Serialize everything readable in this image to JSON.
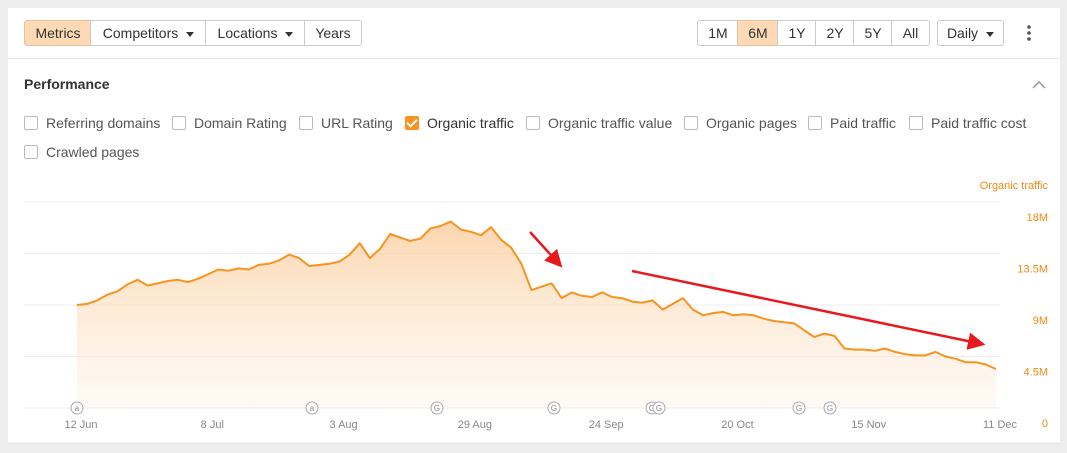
{
  "toolbar": {
    "tabs": [
      "Metrics",
      "Competitors",
      "Locations",
      "Years"
    ],
    "ranges": [
      "1M",
      "6M",
      "1Y",
      "2Y",
      "5Y",
      "All"
    ],
    "interval": "Daily"
  },
  "performance": {
    "title": "Performance",
    "metrics": [
      {
        "label": "Referring domains",
        "checked": false
      },
      {
        "label": "Domain Rating",
        "checked": false
      },
      {
        "label": "URL Rating",
        "checked": false
      },
      {
        "label": "Organic traffic",
        "checked": true
      },
      {
        "label": "Organic traffic value",
        "checked": false
      },
      {
        "label": "Organic pages",
        "checked": false
      },
      {
        "label": "Paid traffic",
        "checked": false
      },
      {
        "label": "Paid traffic cost",
        "checked": false
      },
      {
        "label": "Crawled pages",
        "checked": false
      }
    ]
  },
  "chart_data": {
    "type": "area",
    "categories": [
      "12 Jun",
      null,
      null,
      null,
      null,
      null,
      null,
      null,
      null,
      null,
      null,
      null,
      null,
      "8 Jul",
      null,
      null,
      null,
      null,
      null,
      null,
      null,
      null,
      null,
      null,
      null,
      null,
      "3 Aug",
      null,
      null,
      null,
      null,
      null,
      null,
      null,
      null,
      null,
      null,
      null,
      null,
      "29 Aug",
      null,
      null,
      null,
      null,
      null,
      null,
      null,
      null,
      null,
      null,
      null,
      null,
      "24 Sep",
      null,
      null,
      null,
      null,
      null,
      null,
      null,
      null,
      null,
      null,
      null,
      null,
      "20 Oct",
      null,
      null,
      null,
      null,
      null,
      null,
      null,
      null,
      null,
      null,
      null,
      null,
      "15 Nov",
      null,
      null,
      null,
      null,
      null,
      null,
      null,
      null,
      null,
      null,
      null,
      null,
      "11 Dec"
    ],
    "series": [
      {
        "name": "Organic traffic",
        "color": "#f7931e",
        "values": [
          9000000,
          9100000,
          9400000,
          9900000,
          10200000,
          10800000,
          11200000,
          10700000,
          10900000,
          11100000,
          11200000,
          11000000,
          11300000,
          11700000,
          12100000,
          12000000,
          12200000,
          12100000,
          12500000,
          12600000,
          12900000,
          13400000,
          13100000,
          12400000,
          12500000,
          12600000,
          12800000,
          13400000,
          14400000,
          13100000,
          13900000,
          15200000,
          14900000,
          14600000,
          14800000,
          15700000,
          15900000,
          16300000,
          15600000,
          15400000,
          15100000,
          15800000,
          14700000,
          14000000,
          12600000,
          10300000,
          10600000,
          10900000,
          9600000,
          10100000,
          9800000,
          9700000,
          10100000,
          9700000,
          9600000,
          9300000,
          9200000,
          9400000,
          8600000,
          9100000,
          9600000,
          8600000,
          8100000,
          8300000,
          8400000,
          8100000,
          8200000,
          8100000,
          7800000,
          7600000,
          7500000,
          7400000,
          6800000,
          6200000,
          6500000,
          6300000,
          5200000,
          5100000,
          5100000,
          5000000,
          5200000,
          4900000,
          4700000,
          4600000,
          4600000,
          4900000,
          4500000,
          4300000,
          4000000,
          4000000,
          3800000,
          3400000
        ]
      }
    ],
    "ylim": [
      0,
      18000000
    ],
    "yticks": [
      0,
      {
        "value": 4500000,
        "label": "4.5M"
      },
      {
        "value": 9000000,
        "label": "9M"
      },
      {
        "value": 13500000,
        "label": "13.5M"
      },
      {
        "value": 18000000,
        "label": "18M"
      }
    ],
    "grid": true,
    "annotations": [
      "a",
      "a",
      "G",
      "G",
      "G",
      "G",
      "G",
      "G"
    ]
  }
}
